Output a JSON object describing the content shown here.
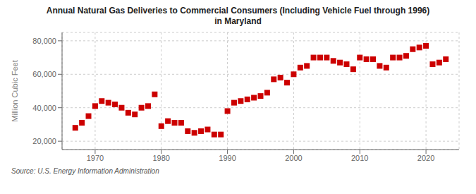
{
  "chart_data": {
    "type": "scatter",
    "title": "Annual Natural Gas Deliveries to Commercial Consumers (Including Vehicle Fuel through 1996)\nin Maryland",
    "y_label": "Million Cubic Feet",
    "annotations": [
      "Source: U.S. Energy Information Administration"
    ],
    "x": [
      1967,
      1968,
      1969,
      1970,
      1971,
      1972,
      1973,
      1974,
      1975,
      1976,
      1977,
      1978,
      1979,
      1980,
      1981,
      1982,
      1983,
      1984,
      1985,
      1986,
      1987,
      1988,
      1989,
      1990,
      1991,
      1992,
      1993,
      1994,
      1995,
      1996,
      1997,
      1998,
      1999,
      2000,
      2001,
      2002,
      2003,
      2004,
      2005,
      2006,
      2007,
      2008,
      2009,
      2010,
      2011,
      2012,
      2013,
      2014,
      2015,
      2016,
      2017,
      2018,
      2019,
      2020,
      2021,
      2022,
      2023
    ],
    "values": [
      28000,
      31000,
      35000,
      41000,
      44000,
      43000,
      42000,
      40000,
      37000,
      36000,
      40000,
      41000,
      48000,
      29000,
      32000,
      31000,
      31000,
      26000,
      25000,
      26000,
      27000,
      24000,
      24000,
      38000,
      43000,
      44000,
      45000,
      46000,
      47000,
      49000,
      57000,
      58000,
      55000,
      60000,
      64000,
      65000,
      70000,
      70000,
      70000,
      68000,
      67000,
      66000,
      63000,
      70000,
      69000,
      69000,
      65000,
      64000,
      70000,
      70000,
      71000,
      75000,
      76000,
      77000,
      66000,
      67000,
      69000
    ],
    "color": "#cc0000",
    "marker": "square",
    "grid": true,
    "xlim": [
      1965,
      2025
    ],
    "xticks": [
      1970,
      1980,
      1990,
      2000,
      2010,
      2020
    ],
    "ylim": [
      15000,
      85000
    ],
    "yticks": [
      {
        "value": 20000,
        "label": "20,000"
      },
      {
        "value": 40000,
        "label": "40,000"
      },
      {
        "value": 60000,
        "label": "60,000"
      },
      {
        "value": 80000,
        "label": "80,000"
      }
    ]
  }
}
